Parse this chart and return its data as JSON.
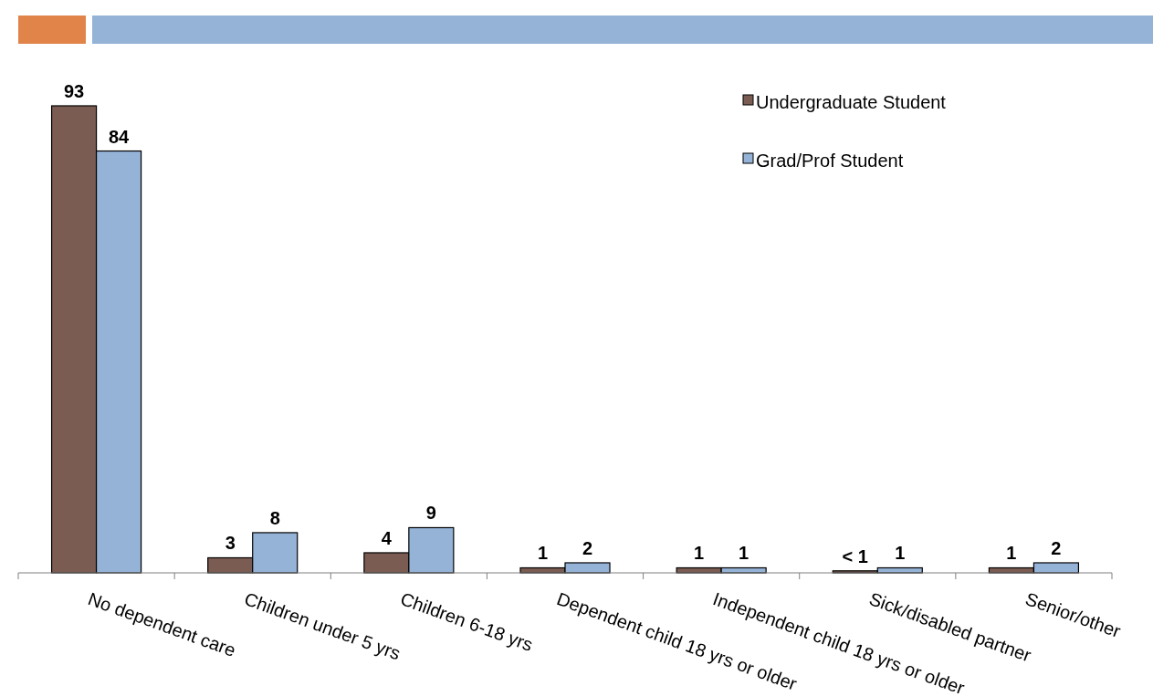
{
  "chart_data": {
    "type": "bar",
    "categories": [
      "No dependent care",
      "Children under 5 yrs",
      "Children 6-18 yrs",
      "Dependent child 18 yrs or older",
      "Independent child 18 yrs or older",
      "Sick/disabled partner",
      "Senior/other"
    ],
    "series": [
      {
        "name": "Undergraduate Student",
        "color": "#7b5c52",
        "values": [
          93,
          3,
          4,
          1,
          1,
          0.4,
          1
        ],
        "value_labels": [
          "93",
          "3",
          "4",
          "1",
          "1",
          "< 1",
          "1"
        ]
      },
      {
        "name": "Grad/Prof Student",
        "color": "#95b3d7",
        "values": [
          84,
          8,
          9,
          2,
          1,
          1,
          2
        ],
        "value_labels": [
          "84",
          "8",
          "9",
          "2",
          "1",
          "1",
          "2"
        ]
      }
    ],
    "legend": "top right",
    "grid": false
  }
}
